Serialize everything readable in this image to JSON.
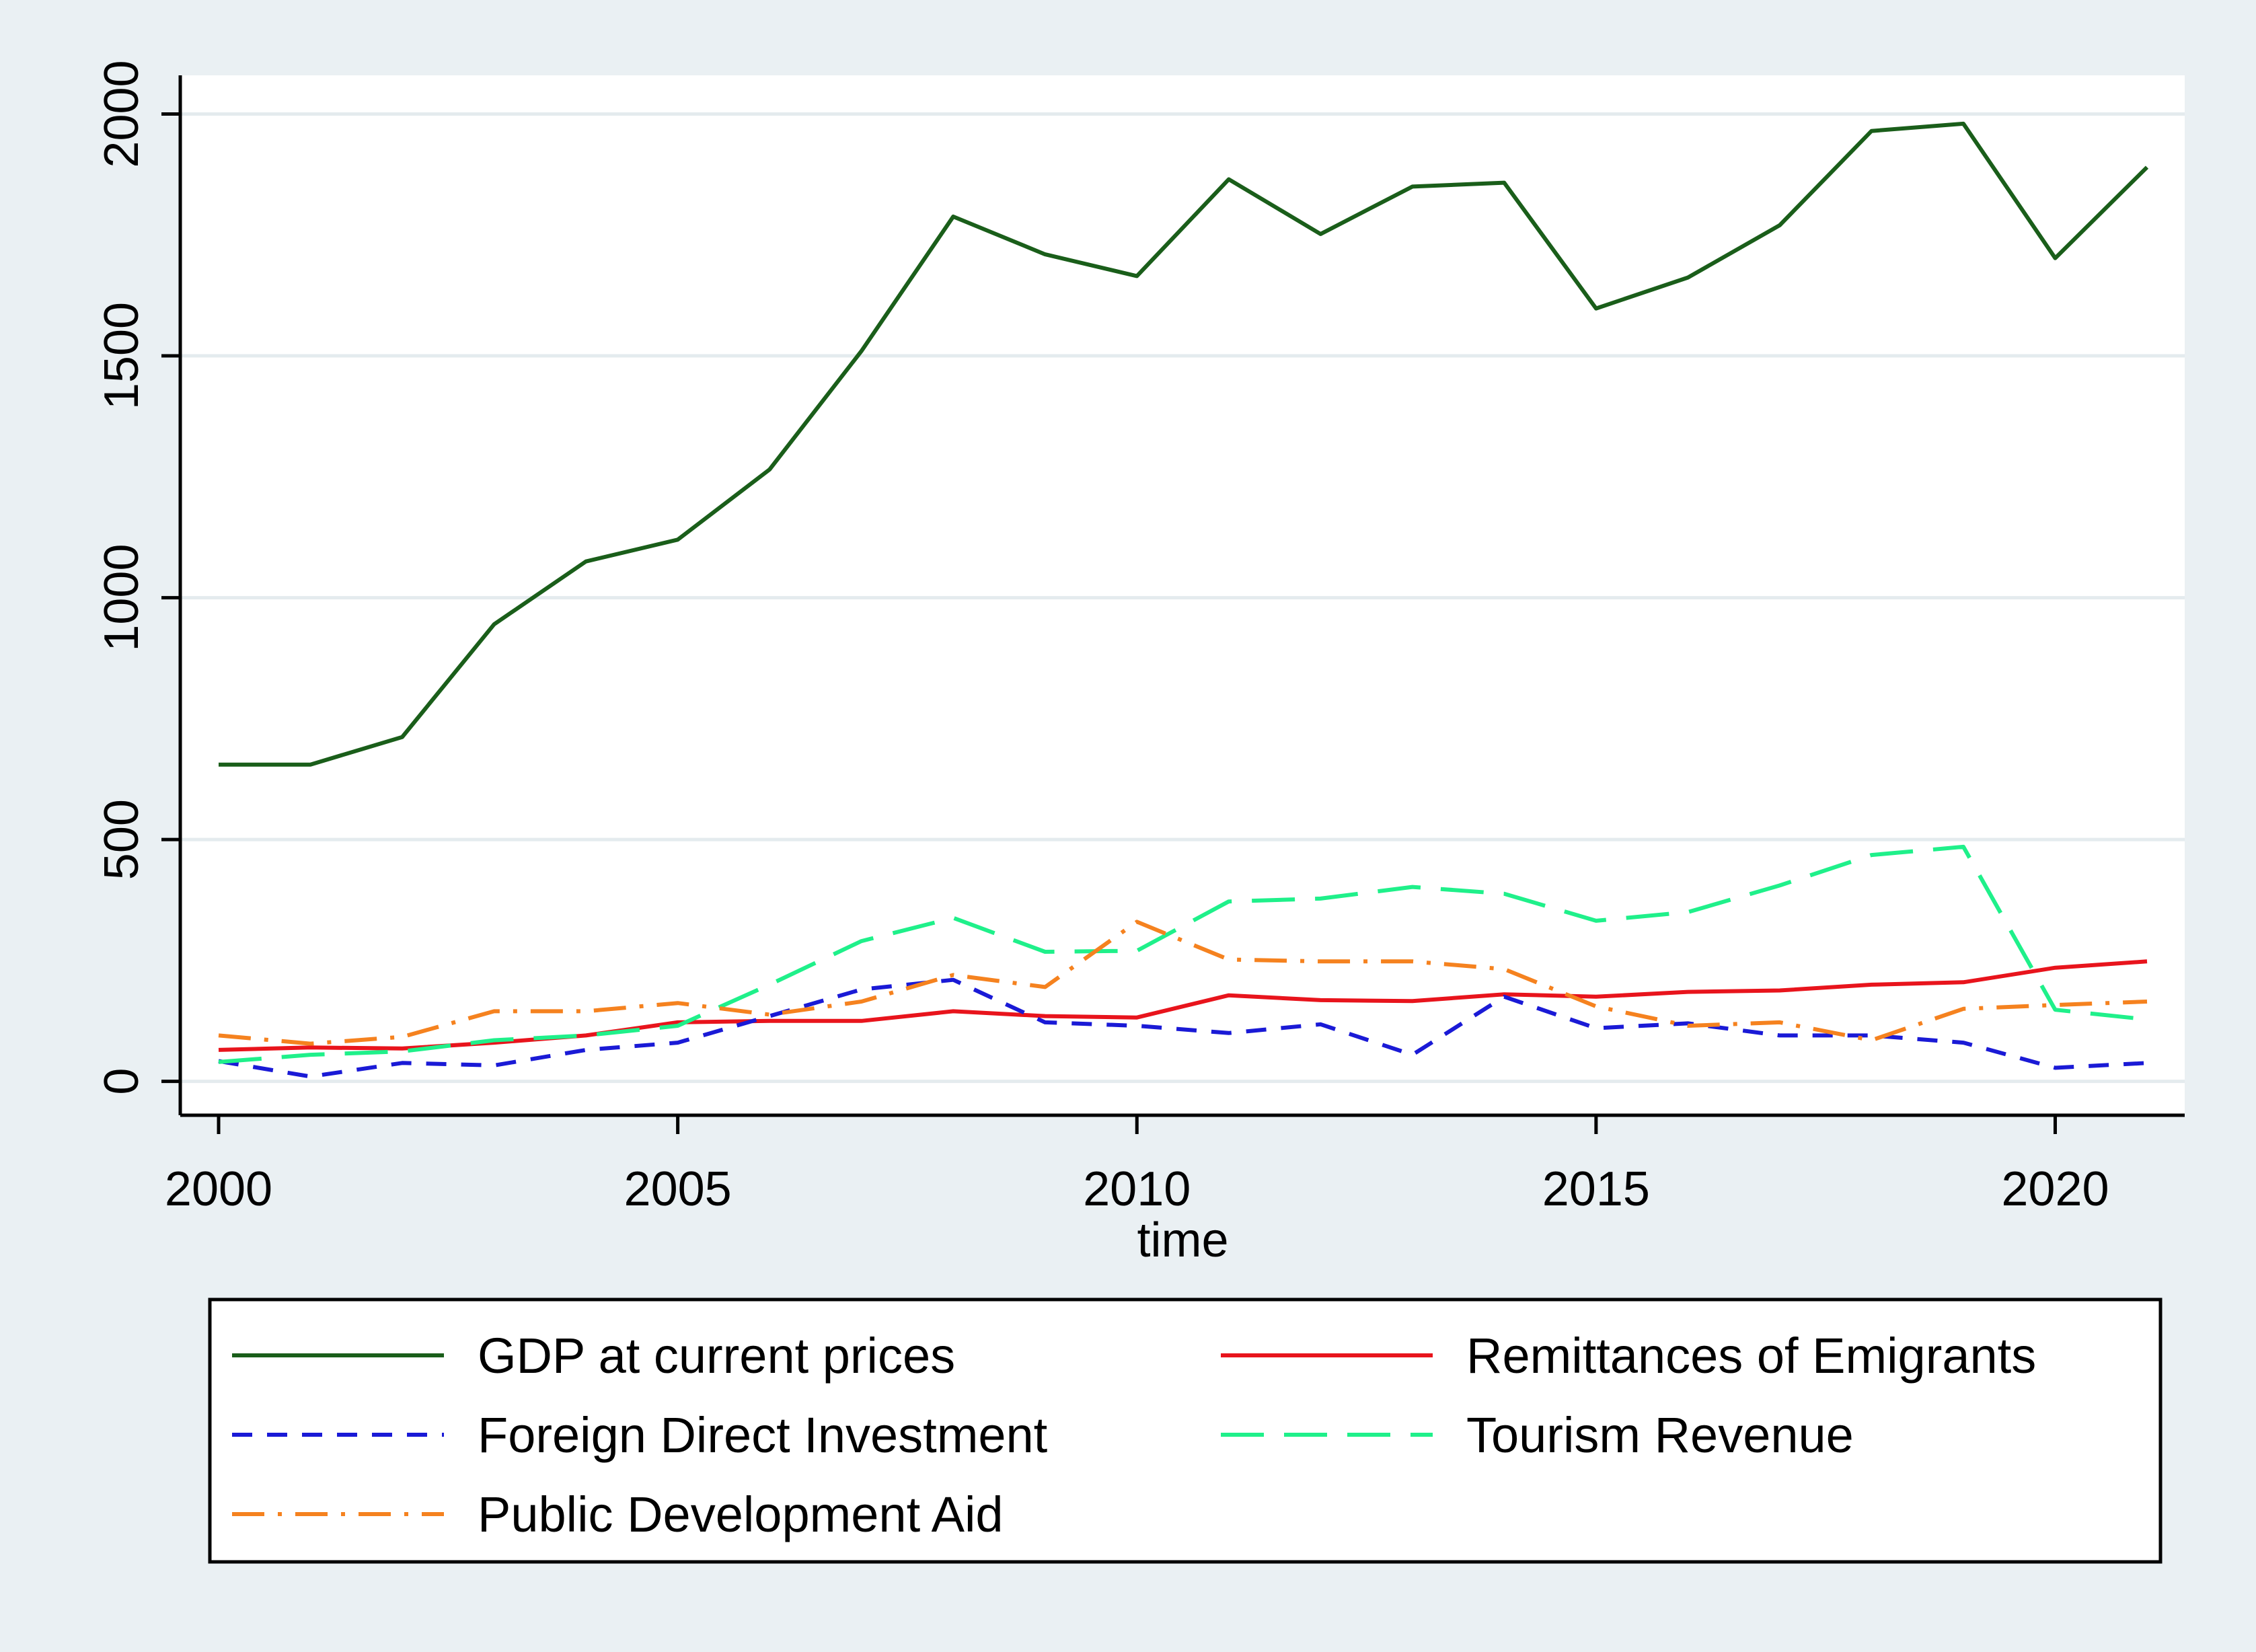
{
  "chart_data": {
    "type": "line",
    "title": "",
    "xlabel": "time",
    "ylabel": "",
    "xlim": [
      2000,
      2021
    ],
    "ylim": [
      -70,
      2080
    ],
    "x_ticks": [
      2000,
      2005,
      2010,
      2015,
      2020
    ],
    "y_ticks": [
      0,
      500,
      1000,
      1500,
      2000
    ],
    "grid": true,
    "legend_position": "bottom",
    "x": [
      2000,
      2001,
      2002,
      2003,
      2004,
      2005,
      2006,
      2007,
      2008,
      2009,
      2010,
      2011,
      2012,
      2013,
      2014,
      2015,
      2016,
      2017,
      2018,
      2019,
      2020,
      2021
    ],
    "series": [
      {
        "name": "GDP at current prices",
        "color": "#1a5e1a",
        "dash": "solid",
        "values": [
          655,
          655,
          712,
          945,
          1075,
          1120,
          1265,
          1510,
          1788,
          1710,
          1665,
          1865,
          1752,
          1850,
          1858,
          1598,
          1662,
          1770,
          1965,
          1980,
          1702,
          1890
        ]
      },
      {
        "name": "Remittances of Emigrants",
        "color": "#e8141c",
        "dash": "solid",
        "values": [
          65,
          70,
          68,
          80,
          95,
          122,
          125,
          125,
          145,
          135,
          132,
          178,
          168,
          166,
          180,
          175,
          185,
          188,
          200,
          205,
          235,
          248
        ]
      },
      {
        "name": "Foreign Direct Investment",
        "color": "#1a1ad6",
        "dash": "shortdash",
        "values": [
          42,
          10,
          38,
          33,
          65,
          80,
          135,
          190,
          210,
          122,
          115,
          100,
          118,
          55,
          175,
          110,
          120,
          95,
          95,
          80,
          28,
          38
        ]
      },
      {
        "name": "Tourism Revenue",
        "color": "#1ff08a",
        "dash": "longdash",
        "values": [
          40,
          55,
          62,
          85,
          95,
          115,
          200,
          290,
          338,
          268,
          270,
          372,
          378,
          402,
          388,
          332,
          350,
          405,
          468,
          485,
          148,
          128
        ]
      },
      {
        "name": "Public Development Aid",
        "color": "#f5821f",
        "dash": "dashdot",
        "values": [
          95,
          78,
          92,
          145,
          145,
          162,
          138,
          165,
          220,
          195,
          330,
          252,
          248,
          248,
          232,
          155,
          115,
          122,
          85,
          150,
          158,
          165
        ]
      }
    ]
  }
}
